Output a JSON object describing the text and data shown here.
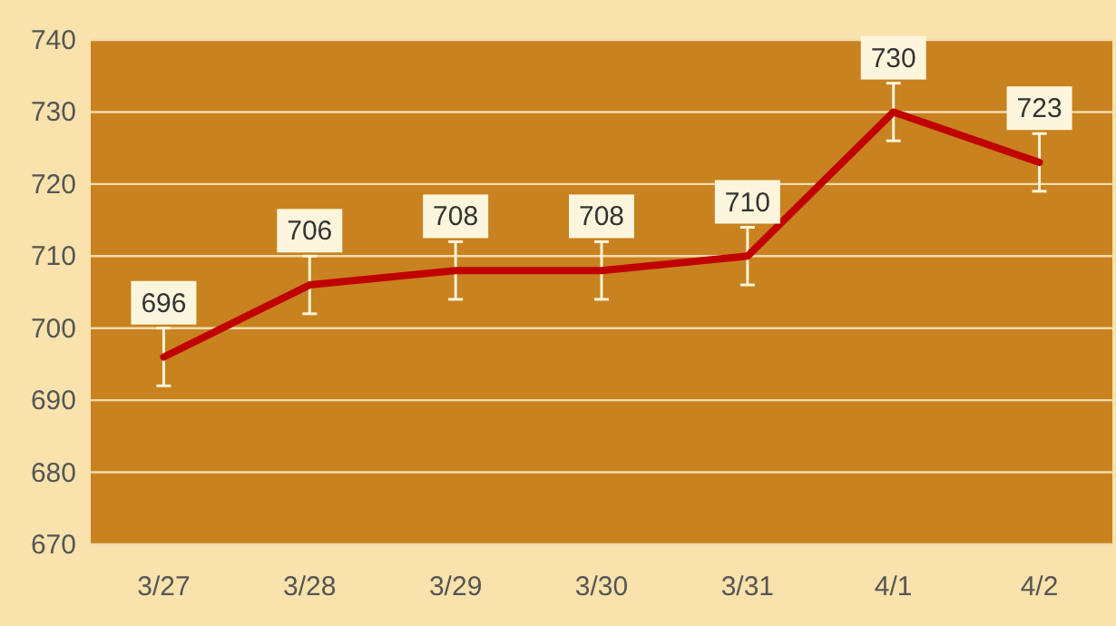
{
  "chart_data": {
    "type": "line",
    "categories": [
      "3/27",
      "3/28",
      "3/29",
      "3/30",
      "3/31",
      "4/1",
      "4/2"
    ],
    "series": [
      {
        "color": "#c00000",
        "values": [
          696,
          706,
          708,
          708,
          710,
          730,
          723
        ],
        "errors": [
          4,
          4,
          4,
          4,
          4,
          4,
          4
        ]
      }
    ],
    "ylim": [
      670,
      740
    ],
    "yticks": [
      670,
      680,
      690,
      700,
      710,
      720,
      730,
      740
    ],
    "grid": "y",
    "data_labels": true,
    "marker": "none",
    "line_style": "solid"
  }
}
